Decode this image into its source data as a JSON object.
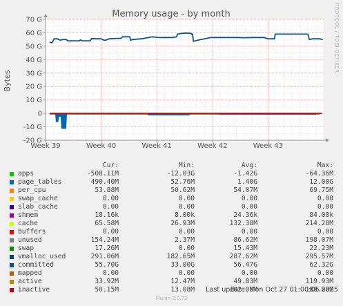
{
  "chart_data": {
    "type": "area",
    "title": "Memory usage - by month",
    "ylabel": "Bytes",
    "side_text": "RRDTOOL / TOBI OETIKER",
    "ylim": [
      -20,
      70
    ],
    "y_ticks": [
      "70 G",
      "60 G",
      "50 G",
      "40 G",
      "30 G",
      "20 G",
      "10 G",
      "0",
      "-10 G",
      "-20 G"
    ],
    "y_tick_values": [
      70,
      60,
      50,
      40,
      30,
      20,
      10,
      0,
      -10,
      -20
    ],
    "x_range": [
      0,
      35
    ],
    "x_ticks": [
      "Week 39",
      "Week 40",
      "Week 41",
      "Week 42",
      "Week 43"
    ],
    "x_tick_values": [
      0,
      7,
      14,
      21,
      28
    ],
    "series": [
      {
        "name": "committed",
        "color": "#0e5287",
        "points": [
          [
            0.5,
            53
          ],
          [
            0.8,
            52.5
          ],
          [
            1.1,
            55.5
          ],
          [
            1.5,
            55.5
          ],
          [
            1.8,
            54.5
          ],
          [
            2.2,
            55
          ],
          [
            2.6,
            55
          ],
          [
            2.8,
            54
          ],
          [
            3.5,
            54
          ],
          [
            4.2,
            54
          ],
          [
            4.4,
            54.6
          ],
          [
            4.6,
            54
          ],
          [
            5.6,
            54
          ],
          [
            5.8,
            55.7
          ],
          [
            6.5,
            55.5
          ],
          [
            7,
            55.5
          ],
          [
            7.3,
            54.5
          ],
          [
            7.6,
            54.5
          ],
          [
            8,
            55.5
          ],
          [
            9,
            55.8
          ],
          [
            9.5,
            55.8
          ],
          [
            9.7,
            57
          ],
          [
            10.6,
            57
          ],
          [
            10.7,
            54.5
          ],
          [
            11,
            55
          ],
          [
            12,
            55.5
          ],
          [
            12.5,
            56
          ],
          [
            13,
            56.5
          ],
          [
            13.4,
            57
          ],
          [
            14.3,
            56.4
          ],
          [
            15,
            56.5
          ],
          [
            16,
            56.5
          ],
          [
            16.5,
            57
          ],
          [
            16.6,
            59
          ],
          [
            17,
            59.4
          ],
          [
            17.6,
            59.8
          ],
          [
            18.3,
            59.6
          ],
          [
            18.4,
            58.8
          ],
          [
            18.5,
            59
          ],
          [
            18.6,
            53.7
          ],
          [
            19.5,
            55
          ],
          [
            20,
            55.5
          ],
          [
            20.8,
            56.5
          ],
          [
            21.5,
            56.5
          ],
          [
            23,
            56.5
          ],
          [
            24,
            56.5
          ],
          [
            25,
            56.3
          ],
          [
            26,
            56.5
          ],
          [
            27,
            56.5
          ],
          [
            27.5,
            56.5
          ],
          [
            28,
            55.5
          ],
          [
            28.8,
            55.5
          ],
          [
            28.9,
            59
          ],
          [
            30,
            59
          ],
          [
            31,
            59
          ],
          [
            32,
            59
          ],
          [
            33,
            59
          ],
          [
            33.2,
            55
          ],
          [
            33.6,
            55.5
          ],
          [
            34.5,
            55.5
          ],
          [
            34.9,
            55
          ]
        ]
      },
      {
        "name": "apps",
        "color": "#00cc00",
        "points": [
          [
            0.5,
            -0.5
          ],
          [
            34.5,
            -0.5
          ]
        ]
      },
      {
        "name": "page_tables",
        "color": "#0066b3",
        "points": [
          [
            0.5,
            0
          ],
          [
            1.2,
            0
          ],
          [
            1.3,
            -6.5
          ],
          [
            1.6,
            -6.5
          ],
          [
            1.7,
            -2.5
          ],
          [
            1.9,
            -2.5
          ],
          [
            2,
            -11.5
          ],
          [
            2.6,
            -11.5
          ],
          [
            2.7,
            0
          ],
          [
            12.8,
            0
          ],
          [
            12.9,
            -1.5
          ],
          [
            18.1,
            -1.5
          ],
          [
            18.2,
            0
          ],
          [
            21.8,
            0
          ],
          [
            21.9,
            -1
          ],
          [
            34,
            -1
          ],
          [
            34.1,
            0
          ]
        ]
      },
      {
        "name": "per_cpu",
        "color": "#ff8000",
        "points": []
      },
      {
        "name": "swap_cache",
        "color": "#ffcc00",
        "points": []
      },
      {
        "name": "slab_cache",
        "color": "#330099",
        "points": []
      },
      {
        "name": "shmem",
        "color": "#990099",
        "points": []
      },
      {
        "name": "cache",
        "color": "#ccff00",
        "points": []
      },
      {
        "name": "buffers",
        "color": "#ff0000",
        "points": []
      },
      {
        "name": "unused",
        "color": "#808080",
        "points": []
      },
      {
        "name": "swap",
        "color": "#008f00",
        "points": []
      },
      {
        "name": "vmalloc_used",
        "color": "#00487d",
        "points": []
      },
      {
        "name": "mapped",
        "color": "#b35a00",
        "points": []
      },
      {
        "name": "active",
        "color": "#b38f00",
        "points": []
      },
      {
        "name": "inactive",
        "color": "#cc0000",
        "points": [
          [
            0.5,
            0
          ],
          [
            34.8,
            0
          ]
        ]
      }
    ]
  },
  "legend": {
    "headers": [
      "Cur:",
      "Min:",
      "Avg:",
      "Max:"
    ],
    "rows": [
      {
        "name": "apps",
        "color": "#00cc00",
        "cur": "-508.11M",
        "min": "-12.03G",
        "avg": "-1.42G",
        "max": "-64.36M"
      },
      {
        "name": "page_tables",
        "color": "#0066b3",
        "cur": "490.40M",
        "min": "52.76M",
        "avg": "1.40G",
        "max": "12.00G"
      },
      {
        "name": "per_cpu",
        "color": "#ff8000",
        "cur": "53.88M",
        "min": "50.62M",
        "avg": "54.07M",
        "max": "69.75M"
      },
      {
        "name": "swap_cache",
        "color": "#ffcc00",
        "cur": "0.00",
        "min": "0.00",
        "avg": "0.00",
        "max": "0.00"
      },
      {
        "name": "slab_cache",
        "color": "#330099",
        "cur": "0.00",
        "min": "0.00",
        "avg": "0.00",
        "max": "0.00"
      },
      {
        "name": "shmem",
        "color": "#990099",
        "cur": "18.16k",
        "min": "8.00k",
        "avg": "24.36k",
        "max": "84.00k"
      },
      {
        "name": "cache",
        "color": "#ccff00",
        "cur": "65.58M",
        "min": "26.93M",
        "avg": "132.38M",
        "max": "214.28M"
      },
      {
        "name": "buffers",
        "color": "#ff0000",
        "cur": "0.00",
        "min": "0.00",
        "avg": "0.00",
        "max": "0.00"
      },
      {
        "name": "unused",
        "color": "#808080",
        "cur": "154.24M",
        "min": "2.37M",
        "avg": "86.62M",
        "max": "198.07M"
      },
      {
        "name": "swap",
        "color": "#008f00",
        "cur": "17.26M",
        "min": "0.00",
        "avg": "15.43M",
        "max": "22.23M"
      },
      {
        "name": "vmalloc_used",
        "color": "#00487d",
        "cur": "291.06M",
        "min": "182.65M",
        "avg": "287.62M",
        "max": "295.57M"
      },
      {
        "name": "committed",
        "color": "#0e5287",
        "cur": "55.70G",
        "min": "33.00G",
        "avg": "56.47G",
        "max": "62.32G"
      },
      {
        "name": "mapped",
        "color": "#b35a00",
        "cur": "0.00",
        "min": "0.00",
        "avg": "0.00",
        "max": "0.00"
      },
      {
        "name": "active",
        "color": "#b38f00",
        "cur": "33.92M",
        "min": "12.47M",
        "avg": "49.83M",
        "max": "119.93M"
      },
      {
        "name": "inactive",
        "color": "#cc0000",
        "cur": "50.15M",
        "min": "13.08M",
        "avg": "102.00M",
        "max": "188.88M"
      }
    ]
  },
  "last_update": "Last update: Mon Oct 27 01:00:06 2025",
  "footer": "Munin 2.0.73"
}
